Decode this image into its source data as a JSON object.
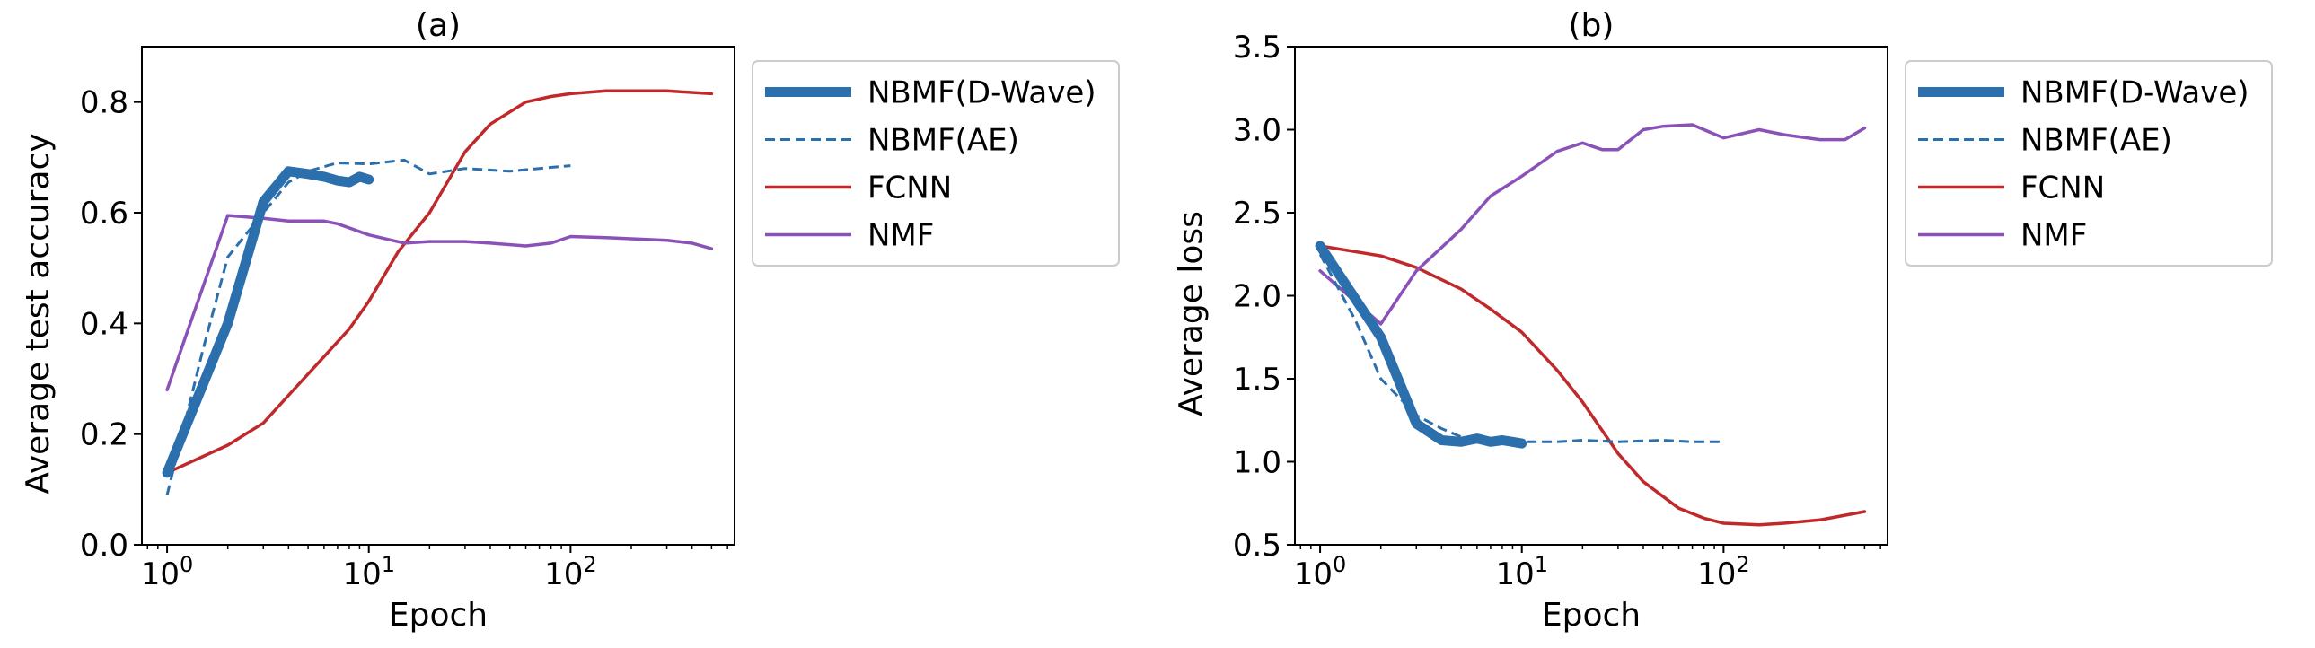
{
  "chart_data": [
    {
      "type": "line",
      "title": "(a)",
      "xlabel": "Epoch",
      "ylabel": "Average test accuracy",
      "xscale": "log",
      "xlim": [
        0.75,
        650
      ],
      "ylim": [
        0.0,
        0.9
      ],
      "yticks": [
        0.0,
        0.2,
        0.4,
        0.6,
        0.8
      ],
      "ytick_labels": [
        "0.0",
        "0.2",
        "0.4",
        "0.6",
        "0.8"
      ],
      "xticks": [
        {
          "base": "10",
          "exp": "0",
          "value": 1
        },
        {
          "base": "10",
          "exp": "1",
          "value": 10
        },
        {
          "base": "10",
          "exp": "2",
          "value": 100
        }
      ],
      "grid": false,
      "legend_position": "outside-right-top",
      "series": [
        {
          "name": "NBMF(D-Wave)",
          "color": "#2c6fad",
          "style": "solid-thick",
          "x": [
            1,
            2,
            3,
            4,
            5,
            6,
            7,
            8,
            9,
            10
          ],
          "y": [
            0.13,
            0.4,
            0.62,
            0.675,
            0.67,
            0.665,
            0.658,
            0.655,
            0.665,
            0.66
          ]
        },
        {
          "name": "NBMF(AE)",
          "color": "#2c6fad",
          "style": "dashed",
          "x": [
            1,
            1.5,
            2,
            3,
            4,
            5,
            7,
            10,
            15,
            20,
            30,
            50,
            70,
            100
          ],
          "y": [
            0.09,
            0.35,
            0.52,
            0.6,
            0.655,
            0.675,
            0.69,
            0.688,
            0.695,
            0.67,
            0.68,
            0.675,
            0.68,
            0.685
          ]
        },
        {
          "name": "FCNN",
          "color": "#c0292b",
          "style": "solid",
          "x": [
            1,
            2,
            3,
            4,
            6,
            8,
            10,
            14,
            20,
            30,
            40,
            60,
            80,
            100,
            150,
            200,
            300,
            500
          ],
          "y": [
            0.13,
            0.18,
            0.22,
            0.27,
            0.34,
            0.39,
            0.44,
            0.53,
            0.6,
            0.71,
            0.76,
            0.8,
            0.81,
            0.815,
            0.82,
            0.82,
            0.82,
            0.815
          ]
        },
        {
          "name": "NMF",
          "color": "#8a52b8",
          "style": "solid",
          "x": [
            1,
            2,
            3,
            4,
            6,
            7,
            10,
            15,
            20,
            30,
            40,
            60,
            80,
            100,
            150,
            200,
            300,
            400,
            500
          ],
          "y": [
            0.28,
            0.595,
            0.59,
            0.585,
            0.585,
            0.58,
            0.56,
            0.545,
            0.548,
            0.548,
            0.545,
            0.54,
            0.545,
            0.557,
            0.555,
            0.553,
            0.55,
            0.545,
            0.535
          ]
        }
      ]
    },
    {
      "type": "line",
      "title": "(b)",
      "xlabel": "Epoch",
      "ylabel": "Average loss",
      "xscale": "log",
      "xlim": [
        0.75,
        650
      ],
      "ylim": [
        0.5,
        3.5
      ],
      "yticks": [
        0.5,
        1.0,
        1.5,
        2.0,
        2.5,
        3.0,
        3.5
      ],
      "ytick_labels": [
        "0.5",
        "1.0",
        "1.5",
        "2.0",
        "2.5",
        "3.0",
        "3.5"
      ],
      "xticks": [
        {
          "base": "10",
          "exp": "0",
          "value": 1
        },
        {
          "base": "10",
          "exp": "1",
          "value": 10
        },
        {
          "base": "10",
          "exp": "2",
          "value": 100
        }
      ],
      "grid": false,
      "legend_position": "outside-right-top",
      "series": [
        {
          "name": "NBMF(D-Wave)",
          "color": "#2c6fad",
          "style": "solid-thick",
          "x": [
            1,
            2,
            3,
            4,
            5,
            6,
            7,
            8,
            9,
            10
          ],
          "y": [
            2.3,
            1.75,
            1.23,
            1.13,
            1.12,
            1.14,
            1.12,
            1.13,
            1.12,
            1.11
          ]
        },
        {
          "name": "NBMF(AE)",
          "color": "#2c6fad",
          "style": "dashed",
          "x": [
            1,
            1.5,
            2,
            3,
            4,
            5,
            7,
            10,
            15,
            20,
            30,
            50,
            70,
            100
          ],
          "y": [
            2.25,
            1.85,
            1.5,
            1.28,
            1.2,
            1.15,
            1.12,
            1.12,
            1.12,
            1.13,
            1.12,
            1.13,
            1.12,
            1.12
          ]
        },
        {
          "name": "FCNN",
          "color": "#c0292b",
          "style": "solid",
          "x": [
            1,
            2,
            3,
            5,
            7,
            10,
            15,
            20,
            30,
            40,
            60,
            80,
            100,
            150,
            200,
            300,
            500
          ],
          "y": [
            2.3,
            2.24,
            2.17,
            2.04,
            1.92,
            1.78,
            1.55,
            1.36,
            1.05,
            0.88,
            0.72,
            0.66,
            0.63,
            0.62,
            0.63,
            0.65,
            0.7
          ]
        },
        {
          "name": "NMF",
          "color": "#8a52b8",
          "style": "solid",
          "x": [
            1,
            2,
            3,
            5,
            7,
            10,
            15,
            20,
            25,
            30,
            40,
            50,
            70,
            100,
            150,
            200,
            300,
            400,
            500
          ],
          "y": [
            2.15,
            1.83,
            2.15,
            2.4,
            2.6,
            2.72,
            2.87,
            2.92,
            2.88,
            2.88,
            3.0,
            3.02,
            3.03,
            2.95,
            3.0,
            2.97,
            2.94,
            2.94,
            3.01
          ]
        }
      ]
    }
  ]
}
